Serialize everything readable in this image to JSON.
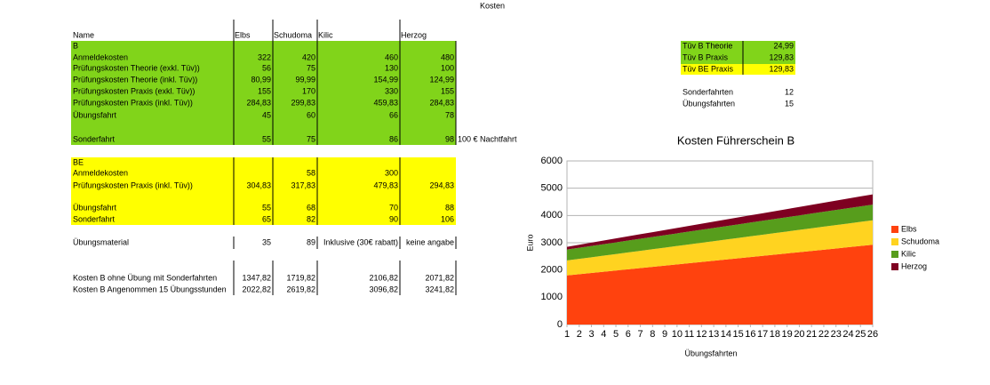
{
  "sheet": {
    "title": "Kosten",
    "header": [
      "Name",
      "Elbs",
      "Schudoma",
      "Kilic",
      "Herzog"
    ],
    "rows": [
      {
        "label": "B"
      },
      {
        "label": "Anmeldekosten",
        "values": [
          "322",
          "420",
          "460",
          "480"
        ]
      },
      {
        "label": "Prüfungskosten Theorie (exkl. Tüv))",
        "values": [
          "56",
          "75",
          "130",
          "100"
        ]
      },
      {
        "label": "Prüfungskosten Theorie (inkl. Tüv))",
        "values": [
          "80,99",
          "99,99",
          "154,99",
          "124,99"
        ]
      },
      {
        "label": "Prüfungskosten Praxis (exkl. Tüv))",
        "values": [
          "155",
          "170",
          "330",
          "155"
        ]
      },
      {
        "label": "Prüfungskosten Praxis (inkl. Tüv))",
        "values": [
          "284,83",
          "299,83",
          "459,83",
          "284,83"
        ]
      },
      {
        "label": "Übungsfahrt",
        "values": [
          "45",
          "60",
          "66",
          "78"
        ]
      },
      {
        "label": "Sonderfahrt",
        "values": [
          "55",
          "75",
          "86",
          "98"
        ],
        "note": "100 € Nachtfahrt"
      },
      {
        "label": "BE"
      },
      {
        "label": "Anmeldekosten",
        "values": [
          null,
          "58",
          "300",
          null
        ]
      },
      {
        "label": "Prüfungskosten Praxis (inkl. Tüv))",
        "values": [
          "304,83",
          "317,83",
          "479,83",
          "294,83"
        ]
      },
      {
        "label": "Übungsfahrt",
        "values": [
          "55",
          "68",
          "70",
          "88"
        ]
      },
      {
        "label": "Sonderfahrt",
        "values": [
          "65",
          "82",
          "90",
          "106"
        ]
      },
      {
        "label": "Übungsmaterial",
        "values": [
          "35",
          "89",
          "Inklusive (30€ rabatt)",
          "keine angabe"
        ]
      },
      {
        "label": "Kosten B ohne Übung mit Sonderfahrten",
        "values": [
          "1347,82",
          "1719,82",
          "2106,82",
          "2071,82"
        ]
      },
      {
        "label": "Kosten B Angenommen 15 Übungsstunden",
        "values": [
          "2022,82",
          "2619,82",
          "3096,82",
          "3241,82"
        ]
      }
    ],
    "side": [
      {
        "label": "Tüv B Theorie",
        "value": "24,99"
      },
      {
        "label": "Tüv B Praxis",
        "value": "129,83"
      },
      {
        "label": "Tüv BE Praxis",
        "value": "129,83"
      },
      {
        "label": "Sonderfahrten",
        "value": "12"
      },
      {
        "label": "Übungsfahrten",
        "value": "15"
      }
    ]
  },
  "chart_data": {
    "type": "stacked_area",
    "title": "Kosten Führerschein B",
    "x_label": "Übungsfahrten",
    "y_label": "Euro",
    "x": [
      1,
      2,
      3,
      4,
      5,
      6,
      7,
      8,
      9,
      10,
      11,
      12,
      13,
      14,
      15,
      16,
      17,
      18,
      19,
      20,
      21,
      22,
      23,
      24,
      25,
      26
    ],
    "xlim": [
      1,
      26
    ],
    "xticks": [
      1,
      2,
      3,
      4,
      5,
      6,
      7,
      8,
      9,
      10,
      11,
      12,
      13,
      14,
      15,
      16,
      17,
      18,
      19,
      20,
      21,
      22,
      23,
      24,
      25,
      26
    ],
    "ylim": [
      0,
      6000
    ],
    "yticks": [
      0,
      1000,
      2000,
      3000,
      4000,
      5000,
      6000
    ],
    "grid": true,
    "legend": "right",
    "series": [
      {
        "name": "Elbs",
        "color": "#ff420e",
        "values": [
          1800,
          1845,
          1890,
          1935,
          1980,
          2025,
          2070,
          2115,
          2160,
          2205,
          2250,
          2295,
          2340,
          2385,
          2430,
          2475,
          2520,
          2565,
          2610,
          2655,
          2700,
          2745,
          2790,
          2835,
          2880,
          2925
        ]
      },
      {
        "name": "Schudoma",
        "color": "#ffd320",
        "values": [
          550,
          564,
          578,
          592,
          606,
          620,
          634,
          648,
          662,
          676,
          690,
          704,
          718,
          732,
          746,
          760,
          774,
          788,
          802,
          816,
          830,
          844,
          858,
          872,
          886,
          900
        ]
      },
      {
        "name": "Kilic",
        "color": "#579d1c",
        "values": [
          400,
          407,
          414,
          421,
          428,
          435,
          442,
          449,
          456,
          463,
          470,
          477,
          484,
          491,
          498,
          505,
          512,
          519,
          526,
          533,
          540,
          547,
          554,
          561,
          568,
          575
        ]
      },
      {
        "name": "Herzog",
        "color": "#7e0021",
        "values": [
          100,
          111,
          122,
          133,
          144,
          155,
          166,
          177,
          188,
          199,
          210,
          221,
          232,
          243,
          254,
          265,
          276,
          287,
          298,
          309,
          320,
          331,
          342,
          353,
          364,
          375
        ]
      }
    ]
  }
}
